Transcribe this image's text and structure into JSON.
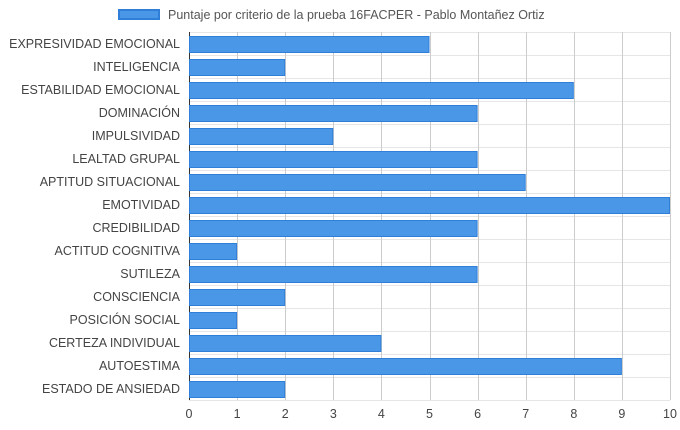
{
  "chart_data": {
    "type": "bar",
    "orientation": "horizontal",
    "categories": [
      "EXPRESIVIDAD EMOCIONAL",
      "INTELIGENCIA",
      "ESTABILIDAD EMOCIONAL",
      "DOMINACIÓN",
      "IMPULSIVIDAD",
      "LEALTAD GRUPAL",
      "APTITUD SITUACIONAL",
      "EMOTIVIDAD",
      "CREDIBILIDAD",
      "ACTITUD COGNITIVA",
      "SUTILEZA",
      "CONSCIENCIA",
      "POSICIÓN SOCIAL",
      "CERTEZA INDIVIDUAL",
      "AUTOESTIMA",
      "ESTADO DE ANSIEDAD"
    ],
    "series": [
      {
        "name": "Puntaje por criterio de la prueba 16FACPER -  Pablo Montañez Ortiz",
        "values": [
          5,
          2,
          8,
          6,
          3,
          6,
          7,
          10,
          6,
          1,
          6,
          2,
          1,
          4,
          9,
          2
        ],
        "color": "#4a97e8",
        "border_color": "#2f7fd9"
      }
    ],
    "xlim": [
      0,
      10
    ],
    "x_ticks": [
      "0",
      "1",
      "2",
      "3",
      "4",
      "5",
      "6",
      "7",
      "8",
      "9",
      "10"
    ],
    "grid": true,
    "legend_position": "top-center"
  }
}
